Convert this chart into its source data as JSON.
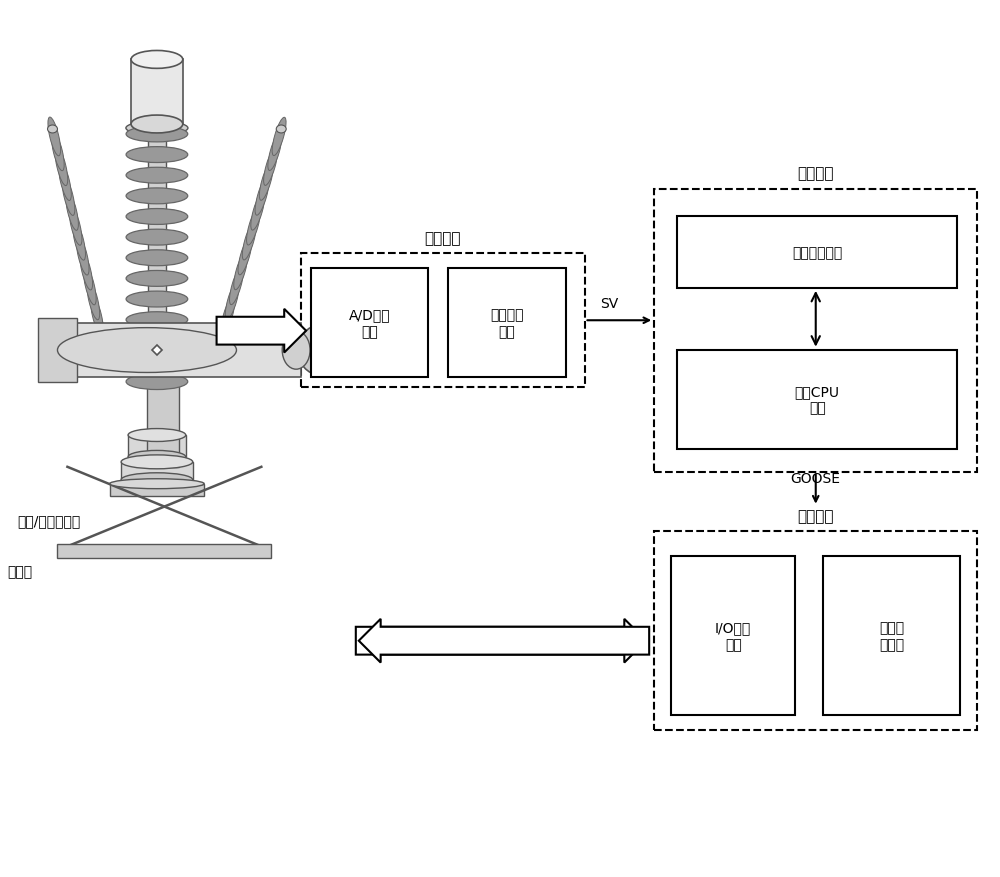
{
  "background_color": "#ffffff",
  "labels": {
    "sensor_label": "电压/电流互感器",
    "breaker_label": "断路器",
    "merging_unit_title": "合并单元",
    "ad_module": "A/D采样\n模块",
    "sync_module": "同步对时\n模块",
    "sv_label": "SV",
    "protection_title": "保护装置",
    "hmi_module": "人机接口模块",
    "cpu_module": "保护CPU\n模块",
    "goose_label": "GOOSE",
    "smart_terminal_title": "智能终端",
    "io_module": "I/O转换\n模块",
    "breaker_box": "断路器\n操作箱"
  },
  "colors": {
    "black": "#000000",
    "white": "#ffffff",
    "dark_gray": "#555555",
    "mid_gray": "#888888",
    "light_gray": "#cccccc",
    "disc_gray": "#999999",
    "disc_edge": "#666666"
  },
  "layout": {
    "fig_width": 10.0,
    "fig_height": 8.78,
    "dpi": 100
  },
  "coord": {
    "xlim": [
      0,
      10
    ],
    "ylim": [
      0,
      8.78
    ]
  }
}
